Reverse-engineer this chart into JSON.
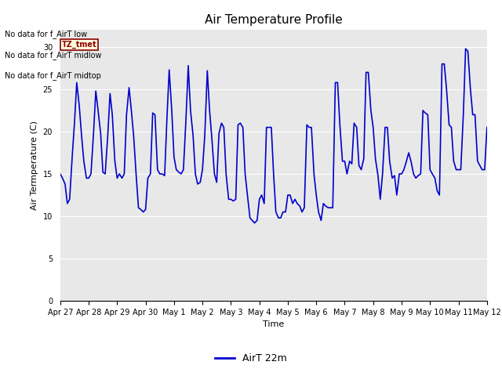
{
  "title": "Air Temperature Profile",
  "xlabel": "Time",
  "ylabel": "Air Termperature (C)",
  "ylim": [
    0,
    32
  ],
  "yticks": [
    0,
    5,
    10,
    15,
    20,
    25,
    30
  ],
  "line_color": "#0000CC",
  "line_width": 1.2,
  "bg_color": "#E8E8E8",
  "legend_label": "AirT 22m",
  "annotations": [
    "No data for f_AirT low",
    "No data for f_AirT midlow",
    "No data for f_AirT midtop"
  ],
  "tz_label": "TZ_tmet",
  "x_tick_labels": [
    "Apr 27",
    "Apr 28",
    "Apr 29",
    "Apr 30",
    "May 1",
    "May 2",
    "May 3",
    "May 4",
    "May 5",
    "May 6",
    "May 7",
    "May 8",
    "May 9",
    "May 10",
    "May 11",
    "May 12"
  ],
  "data_x": [
    0.0,
    0.08,
    0.17,
    0.25,
    0.33,
    0.42,
    0.5,
    0.58,
    0.67,
    0.75,
    0.83,
    0.92,
    1.0,
    1.08,
    1.17,
    1.25,
    1.33,
    1.42,
    1.5,
    1.58,
    1.67,
    1.75,
    1.83,
    1.92,
    2.0,
    2.08,
    2.17,
    2.25,
    2.33,
    2.42,
    2.5,
    2.58,
    2.67,
    2.75,
    2.83,
    2.92,
    3.0,
    3.08,
    3.17,
    3.25,
    3.33,
    3.42,
    3.5,
    3.58,
    3.67,
    3.75,
    3.83,
    3.92,
    4.0,
    4.08,
    4.17,
    4.25,
    4.33,
    4.42,
    4.5,
    4.58,
    4.67,
    4.75,
    4.83,
    4.92,
    5.0,
    5.08,
    5.17,
    5.25,
    5.33,
    5.42,
    5.5,
    5.58,
    5.67,
    5.75,
    5.83,
    5.92,
    6.0,
    6.08,
    6.17,
    6.25,
    6.33,
    6.42,
    6.5,
    6.58,
    6.67,
    6.75,
    6.83,
    6.92,
    7.0,
    7.08,
    7.17,
    7.25,
    7.33,
    7.42,
    7.5,
    7.58,
    7.67,
    7.75,
    7.83,
    7.92,
    8.0,
    8.08,
    8.17,
    8.25,
    8.33,
    8.42,
    8.5,
    8.58,
    8.67,
    8.75,
    8.83,
    8.92,
    9.0,
    9.08,
    9.17,
    9.25,
    9.33,
    9.42,
    9.5,
    9.58,
    9.67,
    9.75,
    9.83,
    9.92,
    10.0,
    10.08,
    10.17,
    10.25,
    10.33,
    10.42,
    10.5,
    10.58,
    10.67,
    10.75,
    10.83,
    10.92,
    11.0,
    11.08,
    11.17,
    11.25,
    11.33,
    11.42,
    11.5,
    11.58,
    11.67,
    11.75,
    11.83,
    11.92,
    12.0,
    12.08,
    12.17,
    12.25,
    12.33,
    12.42,
    12.5,
    12.58,
    12.67,
    12.75,
    12.83,
    12.92,
    13.0,
    13.08,
    13.17,
    13.25,
    13.33,
    13.42,
    13.5,
    13.58,
    13.67,
    13.75,
    13.83,
    13.92,
    14.0,
    14.08,
    14.17,
    14.25,
    14.33,
    14.42,
    14.5,
    14.58,
    14.67,
    14.75,
    14.83,
    14.92,
    15.0
  ],
  "data_y": [
    15.0,
    14.5,
    13.8,
    11.5,
    12.0,
    17.0,
    21.0,
    25.8,
    23.0,
    19.5,
    16.5,
    14.5,
    14.5,
    15.0,
    19.8,
    24.8,
    22.5,
    19.8,
    15.2,
    15.0,
    19.5,
    24.5,
    22.0,
    16.5,
    14.5,
    15.0,
    14.5,
    15.0,
    22.0,
    25.2,
    22.5,
    19.5,
    14.8,
    11.0,
    10.8,
    10.5,
    10.8,
    14.5,
    15.0,
    22.2,
    22.0,
    15.5,
    15.0,
    15.0,
    14.8,
    21.5,
    27.3,
    22.5,
    17.0,
    15.5,
    15.2,
    15.0,
    15.5,
    21.5,
    27.8,
    22.5,
    19.5,
    15.0,
    13.8,
    14.0,
    15.5,
    19.5,
    27.2,
    22.5,
    19.2,
    15.0,
    14.0,
    19.8,
    21.0,
    20.5,
    15.0,
    12.0,
    12.0,
    11.8,
    12.0,
    20.8,
    21.0,
    20.5,
    15.0,
    12.5,
    9.8,
    9.5,
    9.2,
    9.5,
    12.0,
    12.5,
    11.5,
    20.5,
    20.5,
    20.5,
    15.0,
    10.5,
    9.8,
    9.8,
    10.5,
    10.5,
    12.5,
    12.5,
    11.5,
    12.0,
    11.5,
    11.2,
    10.5,
    11.0,
    20.8,
    20.5,
    20.5,
    15.0,
    12.5,
    10.5,
    9.5,
    11.5,
    11.2,
    11.0,
    11.0,
    11.0,
    25.8,
    25.8,
    20.8,
    16.5,
    16.5,
    15.0,
    16.5,
    16.2,
    21.0,
    20.5,
    16.0,
    15.5,
    16.8,
    27.0,
    27.0,
    22.5,
    20.5,
    16.8,
    14.8,
    12.0,
    15.0,
    20.5,
    20.5,
    16.5,
    14.5,
    14.8,
    12.5,
    15.0,
    15.0,
    15.5,
    16.5,
    17.5,
    16.5,
    15.0,
    14.5,
    14.8,
    15.0,
    22.5,
    22.2,
    22.0,
    15.5,
    15.0,
    14.5,
    13.0,
    12.5,
    28.0,
    28.0,
    25.0,
    20.8,
    20.5,
    16.5,
    15.5,
    15.5,
    15.5,
    22.0,
    29.8,
    29.5,
    25.0,
    22.0,
    22.0,
    16.5,
    16.0,
    15.5,
    15.5,
    20.5
  ]
}
